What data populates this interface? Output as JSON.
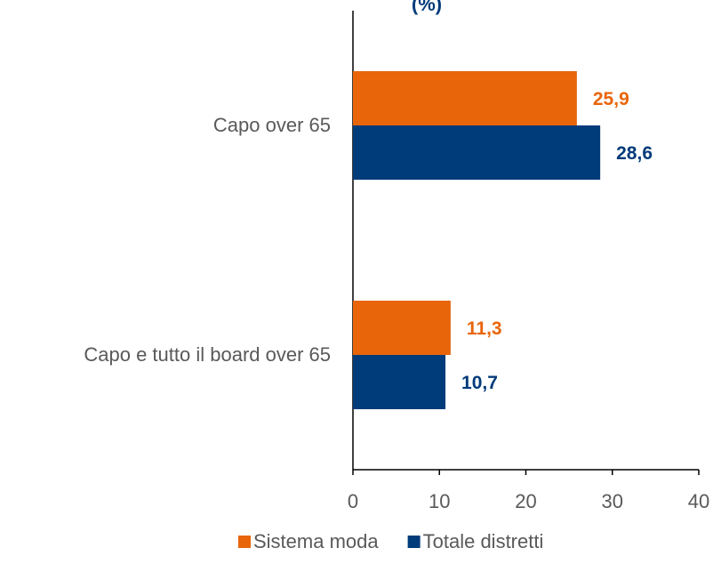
{
  "chart_data": {
    "type": "bar",
    "orientation": "horizontal",
    "title": "(%)",
    "categories": [
      "Capo over 65",
      "Capo e tutto il board over 65"
    ],
    "series": [
      {
        "name": "Sistema moda",
        "color": "#e8650a",
        "values": [
          25.9,
          11.3
        ],
        "value_labels": [
          "25,9",
          "11,3"
        ]
      },
      {
        "name": "Totale distretti",
        "color": "#003b7a",
        "values": [
          28.6,
          10.7
        ],
        "value_labels": [
          "28,6",
          "10,7"
        ]
      }
    ],
    "xlim": [
      0,
      40
    ],
    "xticks": [
      0,
      10,
      20,
      30,
      40
    ],
    "grid": false,
    "legend": "bottom"
  }
}
